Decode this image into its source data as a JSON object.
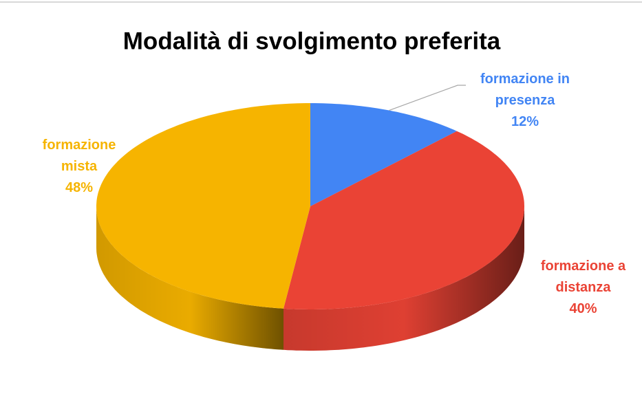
{
  "chart_data": {
    "type": "pie",
    "title": "Modalità di svolgimento preferita",
    "categories": [
      "formazione in presenza",
      "formazione a distanza",
      "formazione mista"
    ],
    "values": [
      12,
      40,
      48
    ],
    "value_labels": [
      "12%",
      "40%",
      "48%"
    ],
    "colors": [
      "#4285f4",
      "#ea4335",
      "#f6b400"
    ]
  }
}
